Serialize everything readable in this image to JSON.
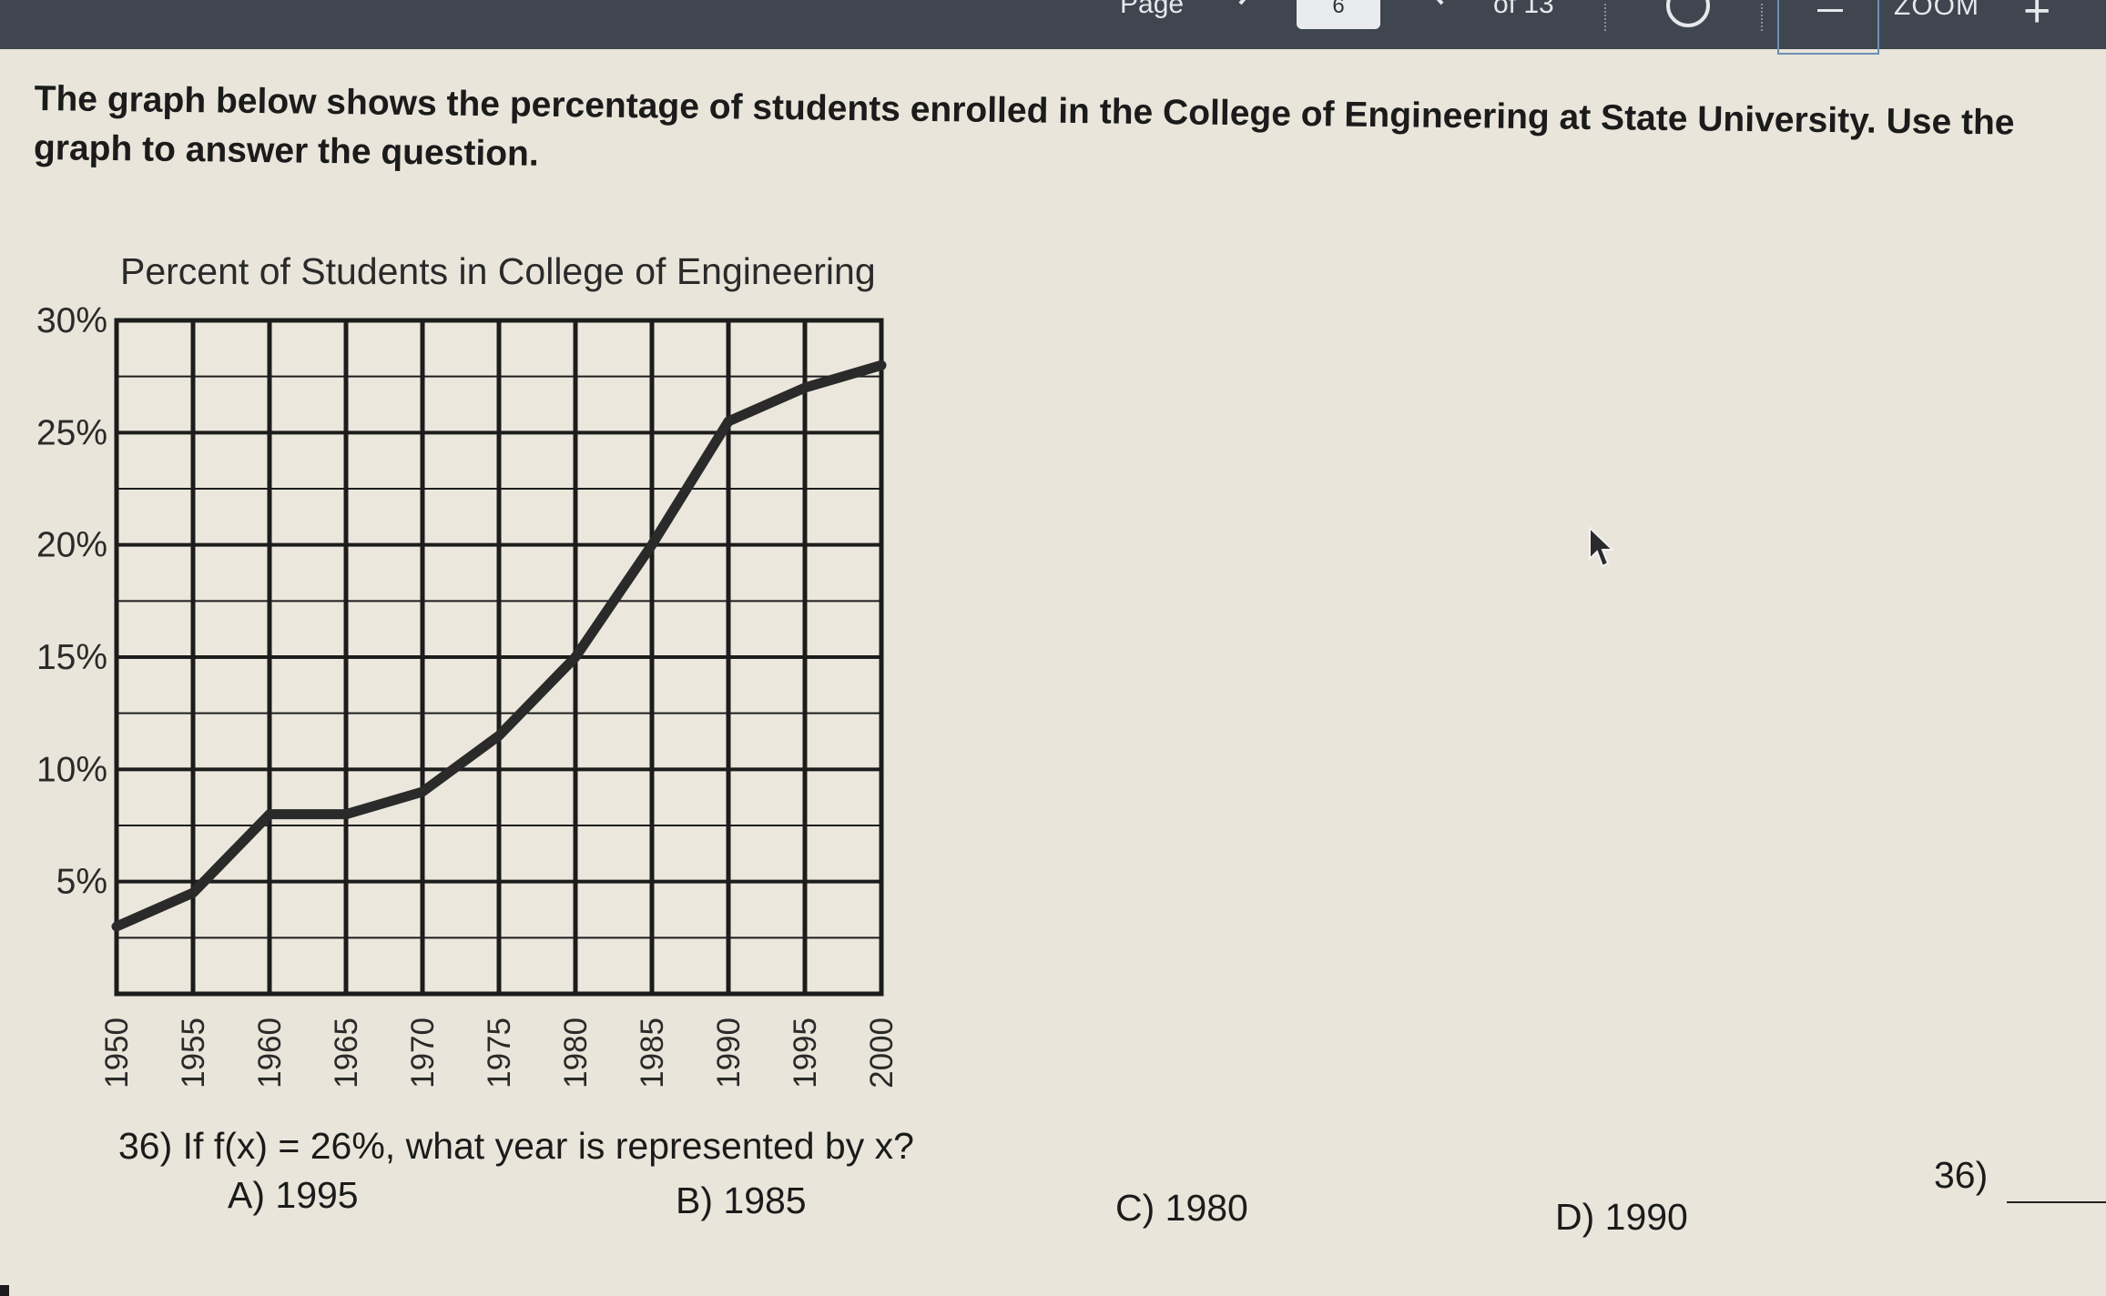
{
  "toolbar": {
    "page_label": "Page",
    "page_number": "6",
    "of_label": "of 13",
    "zoom_label": "ZOOM",
    "zoom_in_label": "+"
  },
  "prompt": {
    "text": "The graph below shows the percentage of students enrolled in the College of Engineering at State University. Use the graph to answer the question."
  },
  "chart_data": {
    "type": "line",
    "title": "Percent of Students in College of Engineering",
    "xlabel": "",
    "ylabel": "",
    "x_ticks": [
      "1950",
      "1955",
      "1960",
      "1965",
      "1970",
      "1975",
      "1980",
      "1985",
      "1990",
      "1995",
      "2000"
    ],
    "y_ticks": [
      "5%",
      "10%",
      "15%",
      "20%",
      "25%",
      "30%"
    ],
    "xlim": [
      1950,
      2000
    ],
    "ylim": [
      0,
      30
    ],
    "grid": true,
    "series": [
      {
        "x": [
          1950,
          1955,
          1960,
          1965,
          1970,
          1975,
          1980,
          1985,
          1990,
          1995,
          2000
        ],
        "values": [
          3,
          4.5,
          8,
          8,
          9,
          11.5,
          15,
          20,
          25.5,
          27,
          28
        ]
      }
    ]
  },
  "question": {
    "text": "36) If f(x) = 26%, what year is represented by x?",
    "choices": [
      "A) 1995",
      "B) 1985",
      "C) 1980",
      "D) 1990"
    ],
    "answer_label": "36)"
  }
}
